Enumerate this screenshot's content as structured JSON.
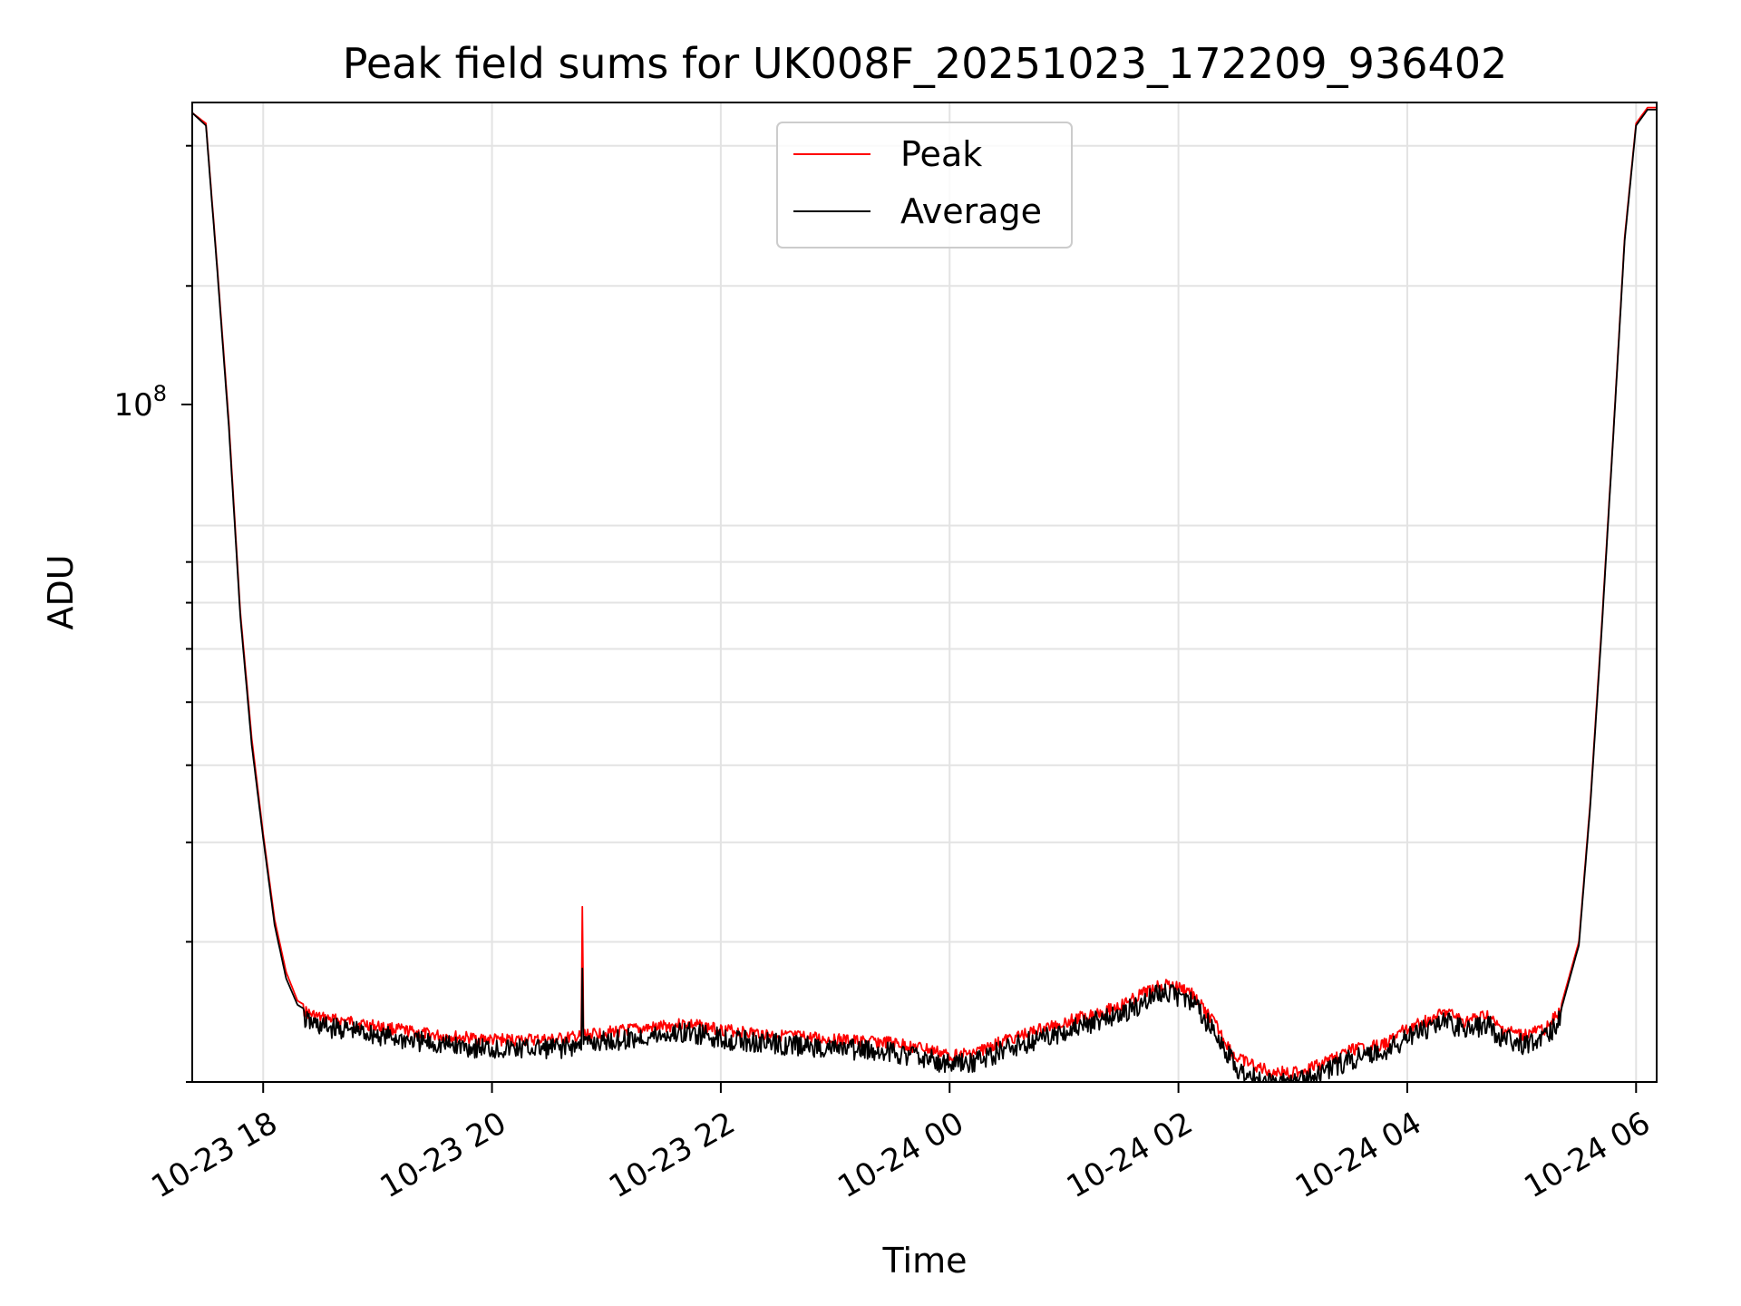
{
  "chart_data": {
    "type": "line",
    "title": "Peak field sums for UK008F_20251023_172209_936402",
    "xlabel": "Time",
    "ylabel": "ADU",
    "yscale": "log",
    "grid": true,
    "legend_position": "top-center",
    "x_unit": "hours since 10-23 00:00",
    "xlim": [
      17.38,
      30.18
    ],
    "ylim": [
      20000000,
      340000000
    ],
    "x_ticks": [
      {
        "value": 18,
        "label": "10-23 18"
      },
      {
        "value": 20,
        "label": "10-23 20"
      },
      {
        "value": 22,
        "label": "10-23 22"
      },
      {
        "value": 24,
        "label": "10-24 00"
      },
      {
        "value": 26,
        "label": "10-24 02"
      },
      {
        "value": 28,
        "label": "10-24 04"
      },
      {
        "value": 30,
        "label": "10-24 06"
      }
    ],
    "y_major_tick": {
      "value": 100000000,
      "base": "10",
      "exponent": "8"
    },
    "y_minor_ticks": [
      20000000,
      30000000,
      40000000,
      50000000,
      60000000,
      70000000,
      80000000,
      90000000,
      200000000,
      300000000
    ],
    "series": [
      {
        "name": "Peak",
        "color": "#ff0000",
        "x": [
          17.38,
          17.5,
          17.6,
          17.7,
          17.8,
          17.9,
          18.0,
          18.1,
          18.2,
          18.3,
          18.4,
          18.5,
          18.8,
          19.0,
          19.5,
          20.0,
          20.5,
          20.78,
          20.79,
          20.8,
          20.81,
          20.82,
          21.0,
          21.5,
          21.7,
          22.0,
          22.5,
          23.0,
          23.5,
          23.8,
          24.0,
          24.2,
          24.5,
          25.0,
          25.5,
          25.8,
          25.9,
          26.1,
          26.3,
          26.5,
          26.8,
          27.0,
          27.2,
          27.5,
          27.8,
          28.0,
          28.2,
          28.35,
          28.5,
          28.7,
          28.8,
          29.0,
          29.2,
          29.35,
          29.5,
          29.6,
          29.7,
          29.8,
          29.9,
          30.0,
          30.1,
          30.18
        ],
        "y": [
          330000000,
          320000000,
          210000000,
          135000000,
          78000000,
          54000000,
          41000000,
          32000000,
          27500000,
          25300000,
          24800000,
          24500000,
          24200000,
          23900000,
          23300000,
          23000000,
          23000000,
          23200000,
          33500000,
          23400000,
          23400000,
          23300000,
          23500000,
          23900000,
          24100000,
          23700000,
          23300000,
          23000000,
          22800000,
          22400000,
          22000000,
          22100000,
          23000000,
          24200000,
          25400000,
          26800000,
          27000000,
          26500000,
          24300000,
          21800000,
          21000000,
          20900000,
          21300000,
          22300000,
          22700000,
          23800000,
          24400000,
          24900000,
          24200000,
          24700000,
          23800000,
          23300000,
          23700000,
          25100000,
          30000000,
          45000000,
          75000000,
          130000000,
          230000000,
          320000000,
          335000000,
          335000000
        ]
      },
      {
        "name": "Average",
        "color": "#000000",
        "x": [
          17.38,
          17.5,
          17.6,
          17.7,
          17.8,
          17.9,
          18.0,
          18.1,
          18.2,
          18.3,
          18.4,
          18.5,
          18.8,
          19.0,
          19.5,
          20.0,
          20.5,
          20.78,
          20.79,
          20.8,
          20.81,
          20.82,
          21.0,
          21.5,
          21.7,
          22.0,
          22.5,
          23.0,
          23.5,
          23.8,
          24.0,
          24.2,
          24.5,
          25.0,
          25.5,
          25.8,
          25.9,
          26.1,
          26.3,
          26.5,
          26.8,
          27.0,
          27.2,
          27.5,
          27.8,
          28.0,
          28.2,
          28.35,
          28.5,
          28.7,
          28.8,
          29.0,
          29.2,
          29.35,
          29.5,
          29.6,
          29.7,
          29.8,
          29.9,
          30.0,
          30.1,
          30.18
        ],
        "y": [
          330000000,
          318000000,
          208000000,
          133000000,
          77000000,
          53000000,
          40500000,
          31500000,
          27000000,
          25000000,
          24500000,
          24200000,
          23900000,
          23600000,
          23000000,
          22700000,
          22700000,
          22900000,
          29000000,
          23100000,
          23100000,
          23000000,
          23200000,
          23600000,
          23800000,
          23400000,
          23000000,
          22700000,
          22500000,
          22100000,
          21700000,
          21800000,
          22700000,
          23900000,
          25100000,
          26500000,
          26700000,
          26200000,
          24000000,
          21500000,
          20700000,
          20600000,
          21000000,
          22000000,
          22400000,
          23500000,
          24100000,
          24600000,
          23900000,
          24400000,
          23500000,
          23000000,
          23400000,
          24800000,
          29700000,
          44500000,
          74000000,
          129000000,
          228000000,
          318000000,
          333000000,
          333000000
        ]
      }
    ]
  }
}
